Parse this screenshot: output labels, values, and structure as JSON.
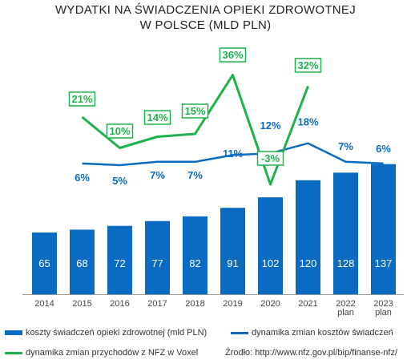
{
  "title_line1": "WYDATKI NA ŚWIADCZENIA OPIEKI ZDROWOTNEJ",
  "title_line2": "W POLSCE (MLD PLN)",
  "colors": {
    "bar": "#0a6bc2",
    "blue_line": "#0a6bc2",
    "green_line": "#1cb34c",
    "axis": "#999999"
  },
  "legend": {
    "bars": "koszty świadczeń opieki zdrowotnej (mld PLN)",
    "blue": "dynamika zmian kosztów świadczeń",
    "green": "dynamika zmian przychodów z NFZ w Voxel"
  },
  "source": "Źrodło: http://www.nfz.gov.pl/bip/finanse-nfz/",
  "chart_data": {
    "type": "bar",
    "categories": [
      "2014",
      "2015",
      "2016",
      "2017",
      "2018",
      "2019",
      "2020",
      "2021",
      "2022\nplan",
      "2023\nplan"
    ],
    "series": [
      {
        "name": "koszty świadczeń opieki zdrowotnej (mld PLN)",
        "type": "bar",
        "values": [
          65,
          68,
          72,
          77,
          82,
          91,
          102,
          120,
          128,
          137
        ],
        "labels": [
          "65",
          "68",
          "72",
          "77",
          "82",
          "91",
          "102",
          "120",
          "128",
          "137"
        ]
      },
      {
        "name": "dynamika zmian kosztów świadczeń",
        "type": "line",
        "values": [
          null,
          6,
          5,
          7,
          7,
          11,
          12,
          18,
          7,
          6
        ],
        "labels": [
          null,
          "6%",
          "5%",
          "7%",
          "7%",
          "11%",
          "12%",
          "18%",
          "7%",
          "6%"
        ]
      },
      {
        "name": "dynamika zmian przychodów z NFZ w Voxel",
        "type": "line",
        "values": [
          null,
          21,
          10,
          14,
          15,
          36,
          -3,
          32,
          null,
          null
        ],
        "labels": [
          null,
          "21%",
          "10%",
          "14%",
          "15%",
          "36%",
          "-3%",
          "32%",
          null,
          null
        ]
      }
    ]
  }
}
